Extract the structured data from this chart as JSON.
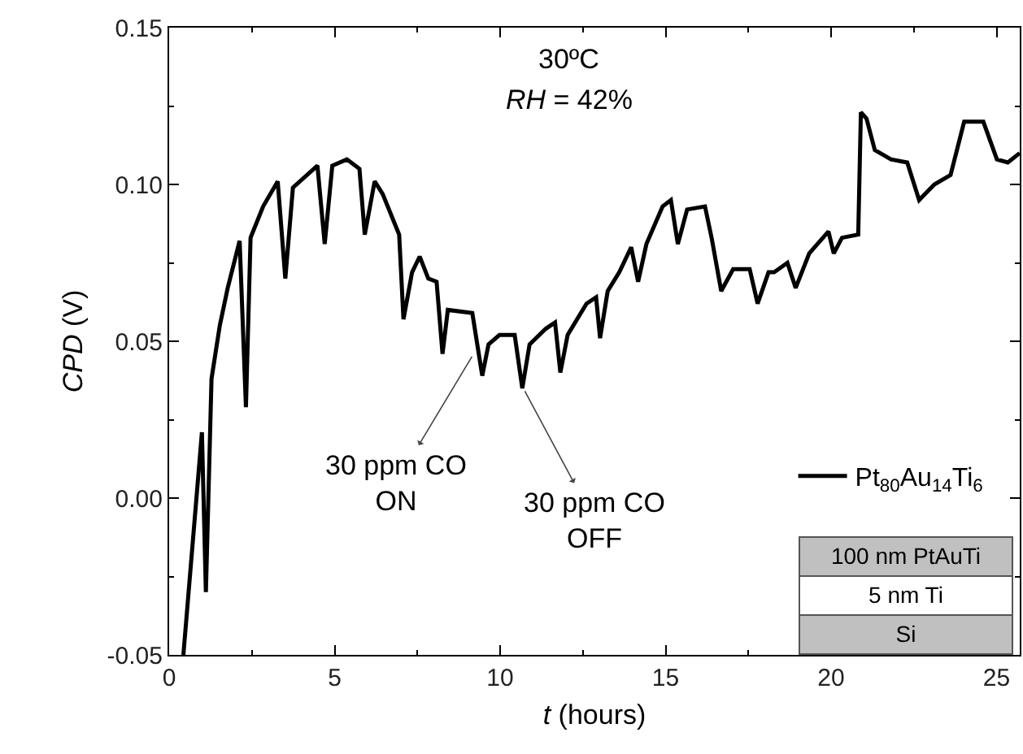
{
  "chart_data": {
    "type": "line",
    "xlabel": "t (hours)",
    "ylabel": "CPD (V)",
    "xlim": [
      0,
      25.7
    ],
    "xticks": [
      0,
      5,
      10,
      15,
      20,
      25
    ],
    "ylim": [
      -0.05,
      0.15
    ],
    "yticks": [
      -0.05,
      {
        "value": 0,
        "label": "0.00"
      },
      0.05,
      {
        "value": 0.1,
        "label": "0.10"
      },
      0.15
    ],
    "grid": false,
    "legend": "bottom right",
    "marker": "none",
    "line_style": "solid",
    "series": [
      {
        "name": "Pt$_{80}$Au$_{14}$Ti$_{6}$",
        "color": "#000000",
        "x": [
          0.43,
          0.99,
          1.11,
          1.28,
          1.53,
          1.77,
          2.13,
          2.32,
          2.46,
          2.84,
          3.28,
          3.51,
          3.74,
          4.48,
          4.7,
          4.93,
          5.37,
          5.75,
          5.91,
          6.21,
          6.45,
          6.95,
          7.08,
          7.34,
          7.57,
          7.83,
          8.08,
          8.26,
          8.42,
          9.16,
          9.46,
          9.65,
          9.98,
          10.44,
          10.67,
          10.89,
          11.38,
          11.66,
          11.82,
          12.04,
          12.61,
          12.9,
          13.02,
          13.25,
          13.6,
          13.96,
          14.17,
          14.42,
          14.91,
          15.16,
          15.37,
          15.65,
          16.19,
          16.39,
          16.68,
          17.04,
          17.54,
          17.78,
          18.11,
          18.28,
          18.68,
          18.93,
          19.34,
          19.92,
          20.08,
          20.33,
          20.82,
          20.9,
          21.07,
          21.32,
          21.81,
          22.3,
          22.66,
          23.12,
          23.61,
          24.02,
          24.6,
          25.01,
          25.34,
          25.7
        ],
        "values": [
          -0.05,
          0.021,
          -0.03,
          0.038,
          0.055,
          0.067,
          0.082,
          0.029,
          0.083,
          0.093,
          0.101,
          0.07,
          0.099,
          0.106,
          0.081,
          0.106,
          0.108,
          0.105,
          0.084,
          0.101,
          0.097,
          0.084,
          0.057,
          0.072,
          0.077,
          0.07,
          0.069,
          0.046,
          0.06,
          0.059,
          0.039,
          0.049,
          0.052,
          0.052,
          0.035,
          0.049,
          0.054,
          0.056,
          0.04,
          0.052,
          0.062,
          0.064,
          0.051,
          0.066,
          0.072,
          0.08,
          0.069,
          0.081,
          0.093,
          0.095,
          0.081,
          0.092,
          0.093,
          0.083,
          0.066,
          0.073,
          0.073,
          0.062,
          0.072,
          0.072,
          0.075,
          0.067,
          0.078,
          0.085,
          0.078,
          0.083,
          0.084,
          0.123,
          0.121,
          0.111,
          0.108,
          0.107,
          0.095,
          0.1,
          0.103,
          0.12,
          0.12,
          0.108,
          0.107,
          0.11
        ]
      }
    ],
    "annotations": [
      "30ºC",
      "RH = 42%",
      {
        "text": "30 ppm CO\nON",
        "x": 9.2,
        "y": 0.046
      },
      {
        "text": "30 ppm CO\nOFF",
        "x": 10.7,
        "y": 0.035
      },
      "100 nm PtAuTi",
      "5 nm Ti",
      "Si"
    ]
  }
}
